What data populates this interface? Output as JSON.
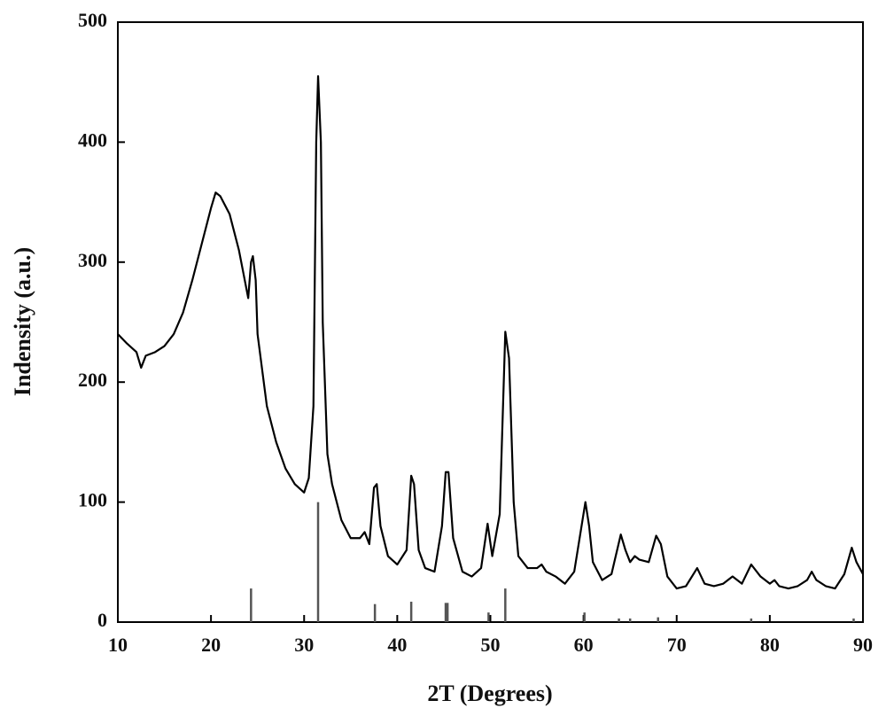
{
  "chart_data": {
    "type": "line",
    "xlabel": "2T (Degrees)",
    "ylabel": "Indensity (a.u.)",
    "xlim": [
      10,
      90
    ],
    "ylim": [
      0,
      500
    ],
    "xticks": [
      10,
      20,
      30,
      40,
      50,
      60,
      70,
      80,
      90
    ],
    "yticks": [
      0,
      100,
      200,
      300,
      400,
      500
    ],
    "grid": false,
    "series": [
      {
        "type": "line",
        "color": "#000000",
        "x": [
          10,
          11,
          12,
          12.5,
          13,
          14,
          15,
          16,
          17,
          18,
          19,
          20,
          20.5,
          21,
          22,
          23,
          23.5,
          24,
          24.3,
          24.5,
          24.8,
          25,
          26,
          27,
          28,
          29,
          30,
          30.5,
          31,
          31.3,
          31.5,
          31.8,
          32,
          32.5,
          33,
          34,
          35,
          36,
          36.5,
          37,
          37.5,
          37.8,
          38.2,
          39,
          40,
          41,
          41.5,
          41.8,
          42.3,
          43,
          44,
          44.8,
          45.2,
          45.5,
          46,
          47,
          48,
          49,
          49.7,
          50.2,
          51,
          51.6,
          52,
          52.5,
          53,
          54,
          55,
          55.5,
          56,
          57,
          58,
          59,
          60.2,
          60.6,
          61,
          62,
          63,
          64,
          64.5,
          65,
          65.5,
          66,
          67,
          67.8,
          68.3,
          69,
          70,
          71,
          72.2,
          73,
          74,
          75,
          76,
          77,
          78,
          79,
          80,
          80.5,
          81,
          82,
          83,
          84,
          84.5,
          85,
          86,
          87,
          88,
          88.8,
          89.3,
          90
        ],
        "values": [
          240,
          232,
          225,
          212,
          222,
          225,
          230,
          240,
          258,
          285,
          315,
          345,
          358,
          355,
          340,
          310,
          290,
          270,
          300,
          305,
          285,
          240,
          180,
          150,
          128,
          115,
          108,
          120,
          180,
          400,
          455,
          400,
          250,
          140,
          115,
          85,
          70,
          70,
          75,
          65,
          112,
          115,
          80,
          55,
          48,
          60,
          122,
          115,
          60,
          45,
          42,
          80,
          125,
          125,
          70,
          42,
          38,
          45,
          82,
          55,
          90,
          242,
          220,
          100,
          55,
          45,
          45,
          48,
          42,
          38,
          32,
          42,
          100,
          80,
          50,
          35,
          40,
          73,
          60,
          50,
          55,
          52,
          50,
          72,
          65,
          38,
          28,
          30,
          45,
          32,
          30,
          32,
          38,
          32,
          48,
          38,
          32,
          35,
          30,
          28,
          30,
          35,
          42,
          35,
          30,
          28,
          40,
          62,
          50,
          40
        ]
      },
      {
        "type": "stem",
        "color": "#555555",
        "x": [
          24.3,
          31.5,
          37.6,
          41.5,
          45.2,
          45.4,
          49.8,
          51.6,
          60.1,
          63.8,
          65,
          68,
          78,
          89
        ],
        "values": [
          28,
          100,
          15,
          17,
          16,
          16,
          8,
          28,
          8,
          3,
          3,
          4,
          3,
          3
        ]
      }
    ]
  }
}
